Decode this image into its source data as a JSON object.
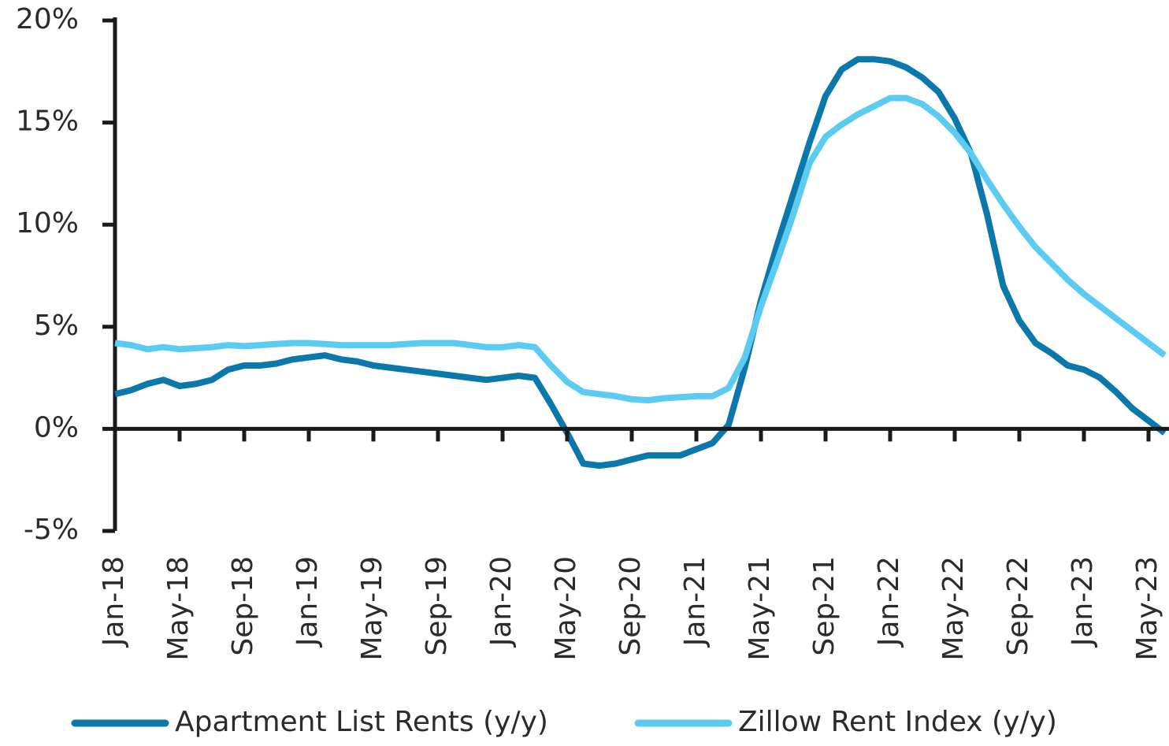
{
  "chart_data": {
    "type": "line",
    "categories": [
      "Jan-18",
      null,
      null,
      null,
      "May-18",
      null,
      null,
      null,
      "Sep-18",
      null,
      null,
      null,
      "Jan-19",
      null,
      null,
      null,
      "May-19",
      null,
      null,
      null,
      "Sep-19",
      null,
      null,
      null,
      "Jan-20",
      null,
      null,
      null,
      "May-20",
      null,
      null,
      null,
      "Sep-20",
      null,
      null,
      null,
      "Jan-21",
      null,
      null,
      null,
      "May-21",
      null,
      null,
      null,
      "Sep-21",
      null,
      null,
      null,
      "Jan-22",
      null,
      null,
      null,
      "May-22",
      null,
      null,
      null,
      "Sep-22",
      null,
      null,
      null,
      "Jan-23",
      null,
      null,
      null,
      "May-23",
      null
    ],
    "series": [
      {
        "name": "Apartment List Rents (y/y)",
        "color": "#0a78aa",
        "values": [
          1.7,
          1.9,
          2.2,
          2.4,
          2.1,
          2.2,
          2.4,
          2.9,
          3.1,
          3.1,
          3.2,
          3.4,
          3.5,
          3.6,
          3.4,
          3.3,
          3.1,
          3.0,
          2.9,
          2.8,
          2.7,
          2.6,
          2.5,
          2.4,
          2.5,
          2.6,
          2.5,
          1.2,
          -0.2,
          -1.7,
          -1.8,
          -1.7,
          -1.5,
          -1.3,
          -1.3,
          -1.3,
          -1.0,
          -0.7,
          0.2,
          3.0,
          6.3,
          9.0,
          11.5,
          14.0,
          16.3,
          17.6,
          18.1,
          18.1,
          18.0,
          17.7,
          17.2,
          16.5,
          15.2,
          13.5,
          10.5,
          7.0,
          5.3,
          4.2,
          3.7,
          3.1,
          2.9,
          2.5,
          1.8,
          1.0,
          0.4,
          -0.2
        ]
      },
      {
        "name": "Zillow Rent Index (y/y)",
        "color": "#5ccbf2",
        "values": [
          4.2,
          4.1,
          3.9,
          4.0,
          3.9,
          3.95,
          4.0,
          4.1,
          4.05,
          4.1,
          4.15,
          4.2,
          4.2,
          4.15,
          4.1,
          4.1,
          4.1,
          4.1,
          4.15,
          4.2,
          4.2,
          4.2,
          4.1,
          4.0,
          4.0,
          4.1,
          4.0,
          3.1,
          2.3,
          1.8,
          1.7,
          1.6,
          1.45,
          1.4,
          1.5,
          1.55,
          1.6,
          1.6,
          2.0,
          3.5,
          6.0,
          8.2,
          10.5,
          13.0,
          14.3,
          14.9,
          15.4,
          15.8,
          16.2,
          16.2,
          15.9,
          15.3,
          14.5,
          13.5,
          12.2,
          11.0,
          9.9,
          8.9,
          8.1,
          7.3,
          6.6,
          6.0,
          5.4,
          4.8,
          4.2,
          3.6
        ]
      }
    ],
    "ylim": [
      -5,
      20
    ],
    "yticks": [
      {
        "value": -5,
        "label": "-5%"
      },
      {
        "value": 0,
        "label": "0%"
      },
      {
        "value": 5,
        "label": "5%"
      },
      {
        "value": 10,
        "label": "10%"
      },
      {
        "value": 15,
        "label": "15%"
      },
      {
        "value": 20,
        "label": "20%"
      }
    ],
    "grid": false
  }
}
